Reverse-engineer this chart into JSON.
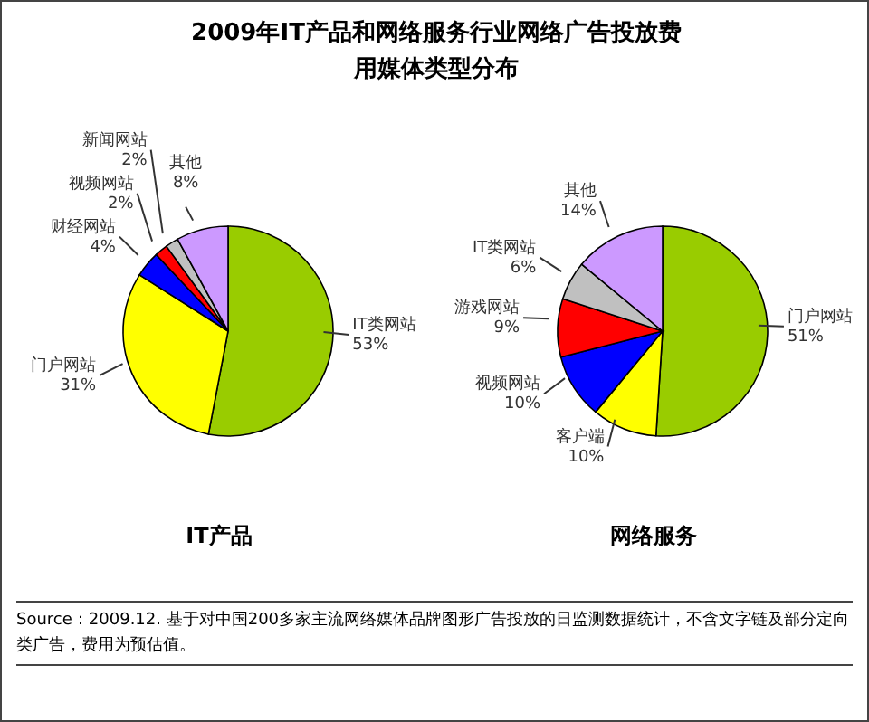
{
  "chart_data": [
    {
      "type": "pie",
      "title": "2009年IT产品和网络服务行业网络广告投放费用媒体类型分布",
      "xlabel": "IT产品",
      "categories": [
        "IT类网站",
        "门户网站",
        "财经网站",
        "视频网站",
        "新闻网站",
        "其他"
      ],
      "values": [
        53,
        31,
        4,
        2,
        2,
        8
      ],
      "value_labels": [
        "53%",
        "31%",
        "4%",
        "2%",
        "2%",
        "8%"
      ],
      "colors": [
        "#99cc00",
        "#ffff00",
        "#0000ff",
        "#ff0000",
        "#c0c0c0",
        "#cc99ff"
      ],
      "legend": false
    },
    {
      "type": "pie",
      "xlabel": "网络服务",
      "categories": [
        "门户网站",
        "客户端",
        "视频网站",
        "游戏网站",
        "IT类网站",
        "其他"
      ],
      "values": [
        51,
        10,
        10,
        9,
        6,
        14
      ],
      "value_labels": [
        "51%",
        "10%",
        "10%",
        "9%",
        "6%",
        "14%"
      ],
      "colors": [
        "#99cc00",
        "#ffff00",
        "#0000ff",
        "#ff0000",
        "#c0c0c0",
        "#cc99ff"
      ],
      "legend": false,
      "annotations": [
        "Source：2009.12. 基于对中国200多家主流网络媒体品牌图形广告投放的日监测数据统计，不含文字链及部分定向类广告，费用为预估值。"
      ]
    }
  ]
}
